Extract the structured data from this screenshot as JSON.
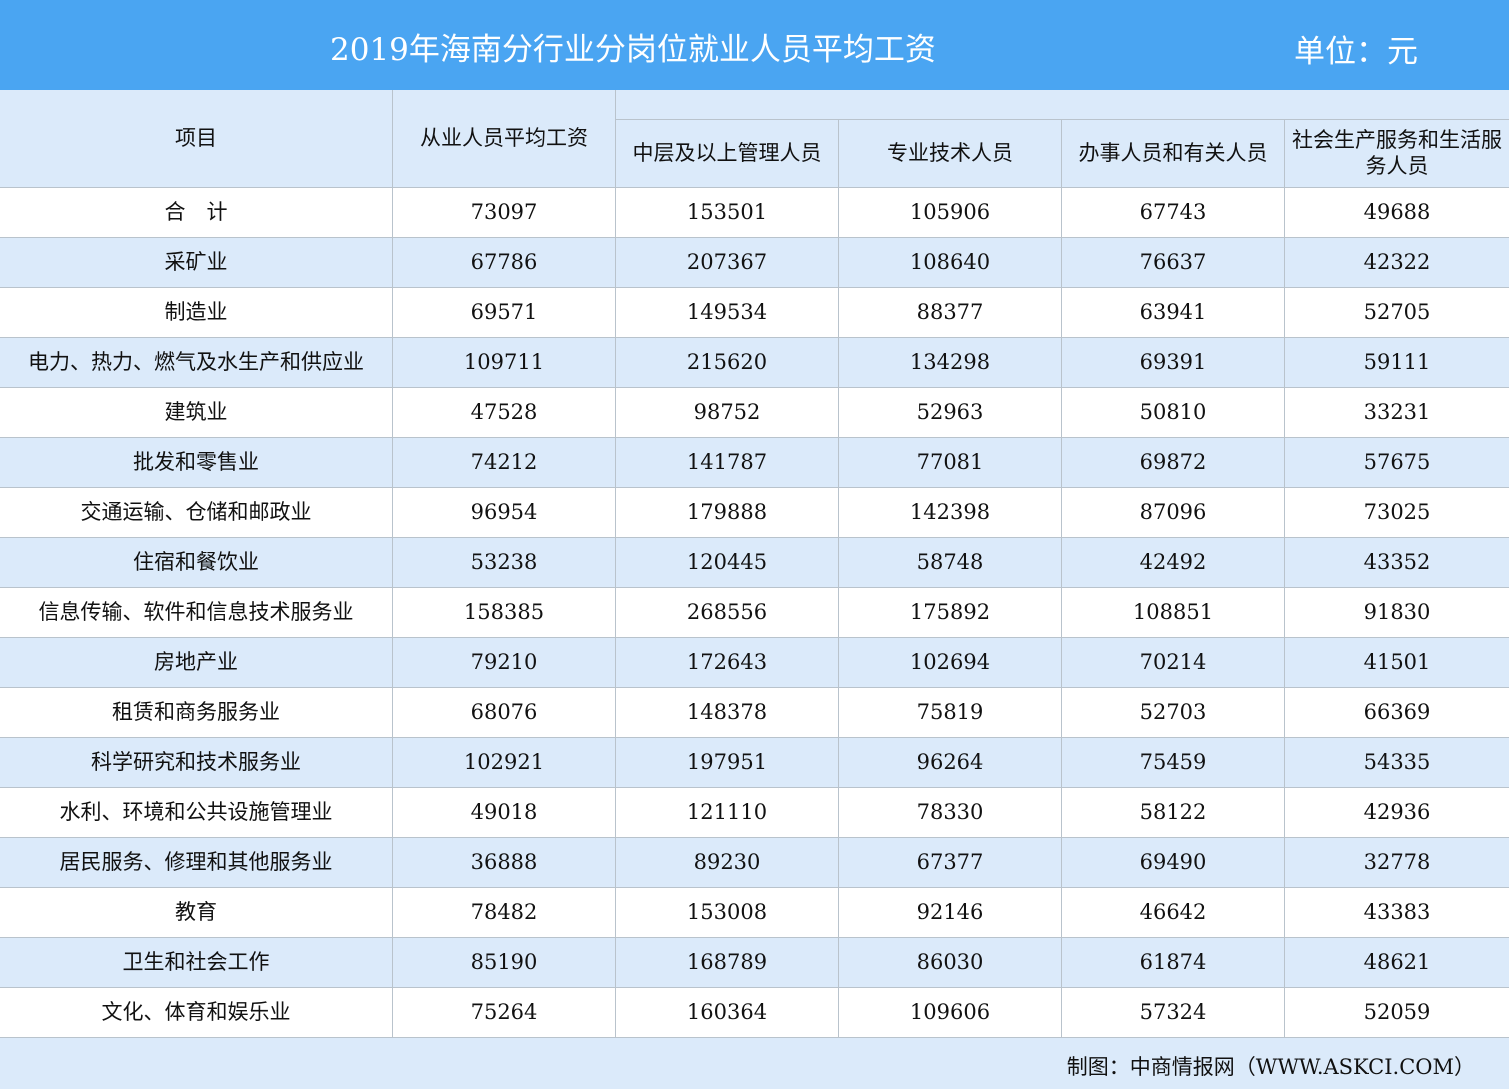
{
  "title": "2019年海南分行业分岗位就业人员平均工资",
  "unit": "单位：元",
  "headers": {
    "item": "项目",
    "average": "从业人员平均工资",
    "sub": [
      "中层及以上管理人员",
      "专业技术人员",
      "办事人员和有关人员",
      "社会生产服务和生活服务人员"
    ]
  },
  "rows": [
    {
      "name": "合　计",
      "values": [
        "73097",
        "153501",
        "105906",
        "67743",
        "49688"
      ]
    },
    {
      "name": "采矿业",
      "values": [
        "67786",
        "207367",
        "108640",
        "76637",
        "42322"
      ]
    },
    {
      "name": "制造业",
      "values": [
        "69571",
        "149534",
        "88377",
        "63941",
        "52705"
      ]
    },
    {
      "name": "电力、热力、燃气及水生产和供应业",
      "values": [
        "109711",
        "215620",
        "134298",
        "69391",
        "59111"
      ]
    },
    {
      "name": "建筑业",
      "values": [
        "47528",
        "98752",
        "52963",
        "50810",
        "33231"
      ]
    },
    {
      "name": "批发和零售业",
      "values": [
        "74212",
        "141787",
        "77081",
        "69872",
        "57675"
      ]
    },
    {
      "name": "交通运输、仓储和邮政业",
      "values": [
        "96954",
        "179888",
        "142398",
        "87096",
        "73025"
      ]
    },
    {
      "name": "住宿和餐饮业",
      "values": [
        "53238",
        "120445",
        "58748",
        "42492",
        "43352"
      ]
    },
    {
      "name": "信息传输、软件和信息技术服务业",
      "values": [
        "158385",
        "268556",
        "175892",
        "108851",
        "91830"
      ]
    },
    {
      "name": "房地产业",
      "values": [
        "79210",
        "172643",
        "102694",
        "70214",
        "41501"
      ]
    },
    {
      "name": "租赁和商务服务业",
      "values": [
        "68076",
        "148378",
        "75819",
        "52703",
        "66369"
      ]
    },
    {
      "name": "科学研究和技术服务业",
      "values": [
        "102921",
        "197951",
        "96264",
        "75459",
        "54335"
      ]
    },
    {
      "name": "水利、环境和公共设施管理业",
      "values": [
        "49018",
        "121110",
        "78330",
        "58122",
        "42936"
      ]
    },
    {
      "name": "居民服务、修理和其他服务业",
      "values": [
        "36888",
        "89230",
        "67377",
        "69490",
        "32778"
      ]
    },
    {
      "name": "教育",
      "values": [
        "78482",
        "153008",
        "92146",
        "46642",
        "43383"
      ]
    },
    {
      "name": "卫生和社会工作",
      "values": [
        "85190",
        "168789",
        "86030",
        "61874",
        "48621"
      ]
    },
    {
      "name": "文化、体育和娱乐业",
      "values": [
        "75264",
        "160364",
        "109606",
        "57324",
        "52059"
      ]
    }
  ],
  "footer": "制图：中商情报网（WWW.ASKCI.COM）",
  "colors": {
    "title_bar": "#4aa5f2",
    "header_bg": "#dbeafa",
    "stripe": "#dbeafa"
  }
}
